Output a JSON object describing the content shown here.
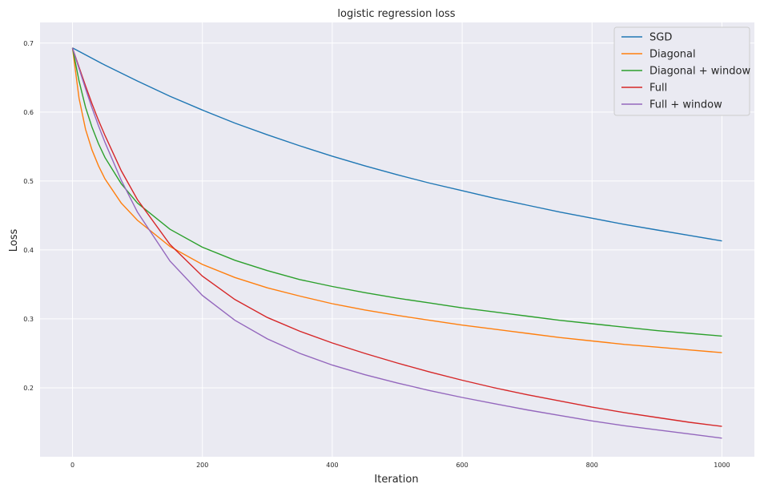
{
  "chart_data": {
    "type": "line",
    "title": "logistic regression loss",
    "xlabel": "Iteration",
    "ylabel": "Loss",
    "xlim": [
      -50,
      1050
    ],
    "ylim": [
      0.1,
      0.73
    ],
    "xticks": [
      0,
      200,
      400,
      600,
      800,
      1000
    ],
    "yticks": [
      0.2,
      0.3,
      0.4,
      0.5,
      0.6,
      0.7
    ],
    "xtick_labels": [
      "0",
      "200",
      "400",
      "600",
      "800",
      "1000"
    ],
    "ytick_labels": [
      "0.2",
      "0.3",
      "0.4",
      "0.5",
      "0.6",
      "0.7"
    ],
    "grid": true,
    "legend_position": "top-right",
    "series": [
      {
        "name": "SGD",
        "color": "#1f77b4",
        "x": [
          0,
          50,
          100,
          150,
          200,
          250,
          300,
          350,
          400,
          450,
          500,
          550,
          600,
          650,
          700,
          750,
          800,
          850,
          900,
          950,
          1000
        ],
        "y": [
          0.693,
          0.668,
          0.645,
          0.623,
          0.603,
          0.584,
          0.567,
          0.551,
          0.536,
          0.522,
          0.509,
          0.497,
          0.486,
          0.475,
          0.465,
          0.455,
          0.446,
          0.437,
          0.429,
          0.421,
          0.413
        ]
      },
      {
        "name": "Diagonal",
        "color": "#ff7f0e",
        "x": [
          0,
          10,
          20,
          30,
          40,
          50,
          75,
          100,
          150,
          200,
          250,
          300,
          350,
          400,
          450,
          500,
          550,
          600,
          650,
          700,
          750,
          800,
          850,
          900,
          950,
          1000
        ],
        "y": [
          0.693,
          0.62,
          0.575,
          0.545,
          0.522,
          0.503,
          0.468,
          0.443,
          0.405,
          0.379,
          0.36,
          0.345,
          0.333,
          0.322,
          0.313,
          0.305,
          0.298,
          0.291,
          0.285,
          0.279,
          0.273,
          0.268,
          0.263,
          0.259,
          0.255,
          0.251
        ]
      },
      {
        "name": "Diagonal + window",
        "color": "#2ca02c",
        "x": [
          0,
          10,
          20,
          30,
          40,
          50,
          75,
          100,
          150,
          200,
          250,
          300,
          350,
          400,
          450,
          500,
          550,
          600,
          650,
          700,
          750,
          800,
          850,
          900,
          950,
          1000
        ],
        "y": [
          0.693,
          0.645,
          0.607,
          0.578,
          0.554,
          0.534,
          0.496,
          0.468,
          0.43,
          0.404,
          0.385,
          0.37,
          0.357,
          0.347,
          0.338,
          0.33,
          0.323,
          0.316,
          0.31,
          0.304,
          0.298,
          0.293,
          0.288,
          0.283,
          0.279,
          0.275
        ]
      },
      {
        "name": "Full",
        "color": "#d62728",
        "x": [
          0,
          10,
          20,
          30,
          40,
          50,
          75,
          100,
          150,
          200,
          250,
          300,
          350,
          400,
          450,
          500,
          550,
          600,
          650,
          700,
          750,
          800,
          850,
          900,
          950,
          1000
        ],
        "y": [
          0.693,
          0.665,
          0.638,
          0.612,
          0.588,
          0.566,
          0.515,
          0.473,
          0.408,
          0.362,
          0.328,
          0.302,
          0.282,
          0.265,
          0.25,
          0.236,
          0.223,
          0.211,
          0.2,
          0.19,
          0.181,
          0.172,
          0.164,
          0.157,
          0.15,
          0.144
        ]
      },
      {
        "name": "Full + window",
        "color": "#9467bd",
        "x": [
          0,
          10,
          20,
          30,
          40,
          50,
          75,
          100,
          150,
          200,
          250,
          300,
          350,
          400,
          450,
          500,
          550,
          600,
          650,
          700,
          750,
          800,
          850,
          900,
          950,
          1000
        ],
        "y": [
          0.693,
          0.663,
          0.634,
          0.606,
          0.58,
          0.556,
          0.501,
          0.455,
          0.384,
          0.334,
          0.298,
          0.271,
          0.25,
          0.233,
          0.219,
          0.207,
          0.196,
          0.186,
          0.177,
          0.168,
          0.16,
          0.152,
          0.145,
          0.139,
          0.133,
          0.127
        ]
      }
    ]
  }
}
